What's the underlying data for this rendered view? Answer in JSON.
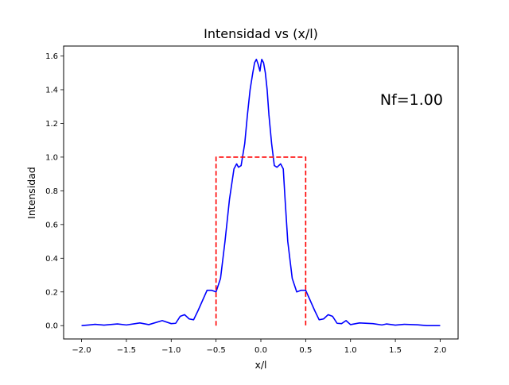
{
  "chart_data": {
    "type": "line",
    "title": "Intensidad vs (x/l)",
    "xlabel": "x/l",
    "ylabel": "Intensidad",
    "xlim": [
      -2.2,
      2.2
    ],
    "ylim": [
      -0.079,
      1.659
    ],
    "xticks": [
      -2.0,
      -1.5,
      -1.0,
      -0.5,
      0.0,
      0.5,
      1.0,
      1.5,
      2.0
    ],
    "xtick_labels": [
      "−2.0",
      "−1.5",
      "−1.0",
      "−0.5",
      "0.0",
      "0.5",
      "1.0",
      "1.5",
      "2.0"
    ],
    "yticks": [
      0.0,
      0.2,
      0.4,
      0.6,
      0.8,
      1.0,
      1.2,
      1.4,
      1.6
    ],
    "ytick_labels": [
      "0.0",
      "0.2",
      "0.4",
      "0.6",
      "0.8",
      "1.0",
      "1.2",
      "1.4",
      "1.6"
    ],
    "grid": false,
    "annotation": "Nf=1.00",
    "series": [
      {
        "color": "#0000ff",
        "style": "solid",
        "x": [
          -2.0,
          -1.9,
          -1.85,
          -1.75,
          -1.6,
          -1.5,
          -1.4,
          -1.35,
          -1.25,
          -1.1,
          -1.0,
          -0.95,
          -0.9,
          -0.85,
          -0.8,
          -0.75,
          -0.7,
          -0.65,
          -0.6,
          -0.55,
          -0.5,
          -0.45,
          -0.4,
          -0.35,
          -0.3,
          -0.27,
          -0.25,
          -0.22,
          -0.18,
          -0.15,
          -0.12,
          -0.09,
          -0.07,
          -0.05,
          -0.03,
          -0.01,
          0.0,
          0.01,
          0.03,
          0.05,
          0.07,
          0.09,
          0.12,
          0.15,
          0.18,
          0.22,
          0.25,
          0.27,
          0.3,
          0.35,
          0.4,
          0.45,
          0.5,
          0.55,
          0.6,
          0.65,
          0.7,
          0.75,
          0.8,
          0.85,
          0.9,
          0.95,
          1.0,
          1.1,
          1.25,
          1.35,
          1.4,
          1.5,
          1.6,
          1.75,
          1.85,
          1.9,
          2.0
        ],
        "values": [
          0.0,
          0.005,
          0.008,
          0.003,
          0.01,
          0.004,
          0.012,
          0.016,
          0.006,
          0.03,
          0.012,
          0.014,
          0.055,
          0.065,
          0.04,
          0.035,
          0.09,
          0.15,
          0.21,
          0.21,
          0.2,
          0.28,
          0.5,
          0.75,
          0.93,
          0.96,
          0.94,
          0.95,
          1.08,
          1.25,
          1.4,
          1.5,
          1.56,
          1.58,
          1.55,
          1.51,
          1.55,
          1.58,
          1.56,
          1.5,
          1.4,
          1.25,
          1.08,
          0.95,
          0.94,
          0.96,
          0.93,
          0.75,
          0.5,
          0.28,
          0.2,
          0.21,
          0.21,
          0.15,
          0.09,
          0.035,
          0.04,
          0.065,
          0.055,
          0.014,
          0.012,
          0.03,
          0.006,
          0.016,
          0.012,
          0.004,
          0.01,
          0.003,
          0.008,
          0.005,
          0.0,
          0.0,
          0.0
        ]
      },
      {
        "color": "#ff0000",
        "style": "dashed",
        "x": [
          -0.5,
          -0.5,
          0.5,
          0.5
        ],
        "values": [
          0.0,
          1.0,
          1.0,
          0.0
        ]
      }
    ]
  }
}
